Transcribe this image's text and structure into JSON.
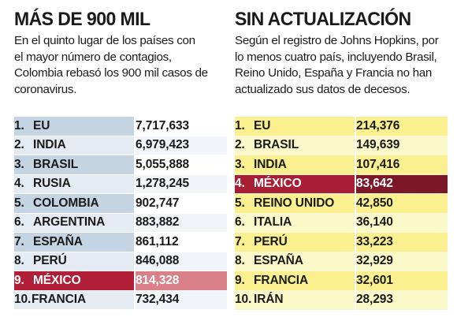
{
  "left": {
    "title": "MÁS DE 900 MIL",
    "intro_lines": [
      "En el quinto lugar de los países con",
      "el mayor número de contagios,",
      "Colombia rebasó los 900 mil casos de",
      "coronavirus."
    ],
    "rows": [
      {
        "rank": "1.",
        "country": "EU",
        "value": "7,717,633"
      },
      {
        "rank": "2.",
        "country": "INDIA",
        "value": "6,979,423"
      },
      {
        "rank": "3.",
        "country": "BRASIL",
        "value": "5,055,888"
      },
      {
        "rank": "4.",
        "country": "RUSIA",
        "value": "1,278,245"
      },
      {
        "rank": "5.",
        "country": "COLOMBIA",
        "value": "902,747"
      },
      {
        "rank": "6.",
        "country": "ARGENTINA",
        "value": "883,882"
      },
      {
        "rank": "7.",
        "country": "ESPAÑA",
        "value": "861,112"
      },
      {
        "rank": "8.",
        "country": "PERÚ",
        "value": "846,088"
      },
      {
        "rank": "9.",
        "country": "MÉXICO",
        "value": "814,328"
      },
      {
        "rank": "10.",
        "country": "FRANCIA",
        "value": "732,434"
      }
    ]
  },
  "right": {
    "title": "SIN ACTUALIZACIÓN",
    "intro_lines": [
      "Según el registro de Johns Hopkins, por",
      "lo menos cuatro país, incluyendo  Brasil,",
      "Reino Unido, España y Francia no han",
      "actualizado sus datos de decesos."
    ],
    "rows": [
      {
        "rank": "1.",
        "country": "EU",
        "value": "214,376"
      },
      {
        "rank": "2.",
        "country": "BRASIL",
        "value": "149,639"
      },
      {
        "rank": "3.",
        "country": "INDIA",
        "value": "107,416"
      },
      {
        "rank": "4.",
        "country": "MÉXICO",
        "value": "83,642"
      },
      {
        "rank": "5.",
        "country": "REINO UNIDO",
        "value": "42,850"
      },
      {
        "rank": "6.",
        "country": "ITALIA",
        "value": "36,140"
      },
      {
        "rank": "7.",
        "country": "PERÚ",
        "value": "33,223"
      },
      {
        "rank": "8.",
        "country": "ESPAÑA",
        "value": "32,929"
      },
      {
        "rank": "9.",
        "country": "FRANCIA",
        "value": "32,601"
      },
      {
        "rank": "10.",
        "country": "IRÁN",
        "value": "28,293"
      }
    ]
  },
  "colors": {
    "left_row": "#c5d4e3",
    "left_row_alt": "#e4ebf2",
    "left_highlight": "#b01f37",
    "left_highlight_value": "#d98089",
    "right_row": "#faf08f",
    "right_row_alt": "#fbf8c9",
    "right_highlight": "#a81e34",
    "right_highlight_value": "#7c1728"
  }
}
